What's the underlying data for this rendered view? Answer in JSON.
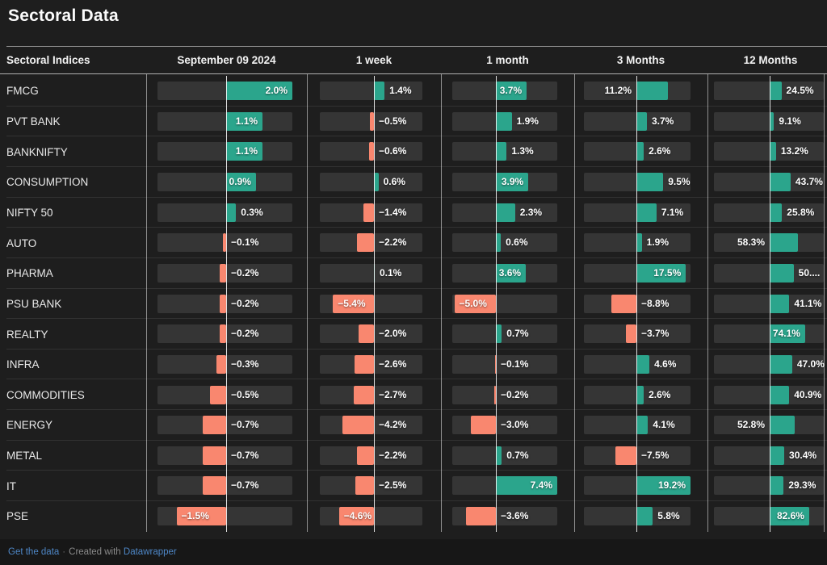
{
  "title": "Sectoral Data",
  "header": {
    "index_label": "Sectoral Indices"
  },
  "footer": {
    "get_data": "Get the data",
    "separator": "·",
    "created_with": "Created with",
    "datawrapper": "Datawrapper"
  },
  "colors": {
    "positive": "#2BA58C",
    "negative": "#F9876F",
    "background": "#1e1e1e",
    "track": "#353535",
    "axis_line": "#d9d9d9",
    "link": "#4e87c7"
  },
  "chart_data": {
    "type": "table",
    "title": "Sectoral Data",
    "note": "Datawrapper-style table of horizontal bar cells; each column has its own bar scale; green = positive, salmon = negative",
    "categories": [
      "FMCG",
      "PVT BANK",
      "BANKNIFTY",
      "CONSUMPTION",
      "NIFTY 50",
      "AUTO",
      "PHARMA",
      "PSU BANK",
      "REALTY",
      "INFRA",
      "COMMODITIES",
      "ENERGY",
      "METAL",
      "IT",
      "PSE"
    ],
    "series": [
      {
        "name": "September 09 2024",
        "values": [
          2.0,
          1.1,
          1.1,
          0.9,
          0.3,
          -0.1,
          -0.2,
          -0.2,
          -0.2,
          -0.3,
          -0.5,
          -0.7,
          -0.7,
          -0.7,
          -1.5
        ],
        "labels": [
          "2.0%",
          "1.1%",
          "1.1%",
          "0.9%",
          "0.3%",
          "−0.1%",
          "−0.2%",
          "−0.2%",
          "−0.2%",
          "−0.3%",
          "−0.5%",
          "−0.7%",
          "−0.7%",
          "−0.7%",
          "−1.5%"
        ],
        "label_pos": [
          "inside",
          "inside",
          "inside",
          "inside",
          "right",
          "right",
          "right",
          "right",
          "right",
          "right",
          "right",
          "right",
          "right",
          "right",
          "inside"
        ]
      },
      {
        "name": "1 week",
        "values": [
          1.4,
          -0.5,
          -0.6,
          0.6,
          -1.4,
          -2.2,
          0.1,
          -5.4,
          -2.0,
          -2.6,
          -2.7,
          -4.2,
          -2.2,
          -2.5,
          -4.6
        ],
        "labels": [
          "1.4%",
          "−0.5%",
          "−0.6%",
          "0.6%",
          "−1.4%",
          "−2.2%",
          "0.1%",
          "−5.4%",
          "−2.0%",
          "−2.6%",
          "−2.7%",
          "−4.2%",
          "−2.2%",
          "−2.5%",
          "−4.6%"
        ],
        "label_pos": [
          "right",
          "right",
          "right",
          "right",
          "right",
          "right",
          "right",
          "inside",
          "right",
          "right",
          "right",
          "right",
          "right",
          "right",
          "inside"
        ]
      },
      {
        "name": "1 month",
        "values": [
          3.7,
          1.9,
          1.3,
          3.9,
          2.3,
          0.6,
          3.6,
          -5.0,
          0.7,
          -0.1,
          -0.2,
          -3.0,
          0.7,
          7.4,
          -3.6
        ],
        "labels": [
          "3.7%",
          "1.9%",
          "1.3%",
          "3.9%",
          "2.3%",
          "0.6%",
          "3.6%",
          "−5.0%",
          "0.7%",
          "−0.1%",
          "−0.2%",
          "−3.0%",
          "0.7%",
          "7.4%",
          "−3.6%"
        ],
        "label_pos": [
          "inside",
          "right",
          "right",
          "inside",
          "right",
          "right",
          "inside",
          "inside",
          "right",
          "right",
          "right",
          "right",
          "right",
          "inside",
          "right"
        ]
      },
      {
        "name": "3 Months",
        "values": [
          11.2,
          3.7,
          2.6,
          9.5,
          7.1,
          1.9,
          17.5,
          -8.8,
          -3.7,
          4.6,
          2.6,
          4.1,
          -7.5,
          19.2,
          5.8
        ],
        "labels": [
          "11.2%",
          "3.7%",
          "2.6%",
          "9.5%",
          "7.1%",
          "1.9%",
          "17.5%",
          "−8.8%",
          "−3.7%",
          "4.6%",
          "2.6%",
          "4.1%",
          "−7.5%",
          "19.2%",
          "5.8%"
        ],
        "label_pos": [
          "left",
          "right",
          "right",
          "right",
          "right",
          "right",
          "inside",
          "right",
          "right",
          "right",
          "right",
          "right",
          "right",
          "inside",
          "right"
        ]
      },
      {
        "name": "12 Months",
        "values": [
          24.5,
          9.1,
          13.2,
          43.7,
          25.8,
          58.3,
          50.0,
          41.1,
          74.1,
          47.0,
          40.9,
          52.8,
          30.4,
          29.3,
          82.6
        ],
        "labels": [
          "24.5%",
          "9.1%",
          "13.2%",
          "43.7%",
          "25.8%",
          "58.3%",
          "50....",
          "41.1%",
          "74.1%",
          "47.0%",
          "40.9%",
          "52.8%",
          "30.4%",
          "29.3%",
          "82.6%"
        ],
        "label_pos": [
          "right",
          "right",
          "right",
          "right",
          "right",
          "left",
          "right",
          "right",
          "inside",
          "right",
          "right",
          "left",
          "right",
          "right",
          "inside"
        ]
      }
    ]
  }
}
